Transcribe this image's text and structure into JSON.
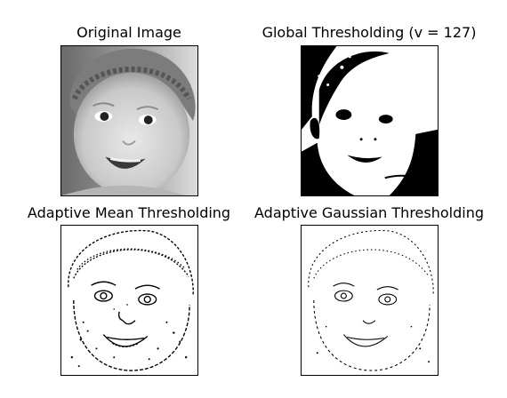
{
  "figure": {
    "panels": [
      {
        "id": "original",
        "title": "Original Image",
        "subject": "grayscale photo of a smiling baby wearing a knit cap"
      },
      {
        "id": "global",
        "title": "Global Thresholding (v = 127)",
        "subject": "binary black/white threshold of the baby photo"
      },
      {
        "id": "adaptive-mean",
        "title": "Adaptive Mean Thresholding",
        "subject": "edge-like binary rendering of the baby photo"
      },
      {
        "id": "adaptive-gaussian",
        "title": "Adaptive Gaussian Thresholding",
        "subject": "cleaner edge-like binary rendering of the baby photo"
      }
    ]
  },
  "colors": {
    "background": "#ffffff",
    "ink": "#000000",
    "frame": "#000000"
  }
}
